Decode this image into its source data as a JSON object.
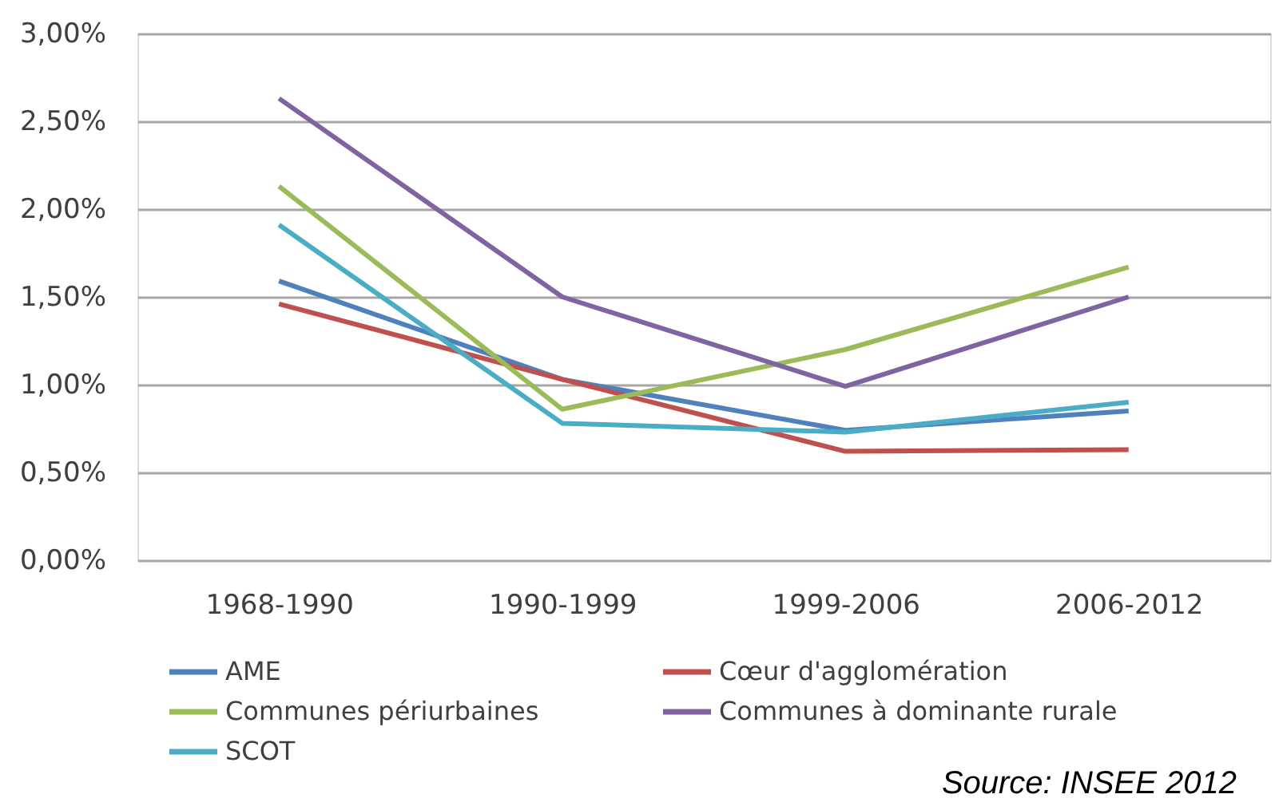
{
  "chart_data": {
    "type": "line",
    "categories": [
      "1968-1990",
      "1990-1999",
      "1999-2006",
      "2006-2012"
    ],
    "series": [
      {
        "name": "AME",
        "color": "#4f81bd",
        "values": [
          1.59,
          1.03,
          0.74,
          0.85
        ]
      },
      {
        "name": "Cœur d'agglomération",
        "color": "#c0504d",
        "values": [
          1.46,
          1.03,
          0.62,
          0.63
        ]
      },
      {
        "name": "Communes périurbaines",
        "color": "#9bbb59",
        "values": [
          2.13,
          0.86,
          1.2,
          1.67
        ]
      },
      {
        "name": "Communes à dominante rurale",
        "color": "#8064a2",
        "values": [
          2.63,
          1.5,
          0.99,
          1.5
        ]
      },
      {
        "name": "SCOT",
        "color": "#4bacc6",
        "values": [
          1.91,
          0.78,
          0.73,
          0.9
        ]
      }
    ],
    "ylim": [
      0,
      3
    ],
    "yticks": [
      {
        "value": 0,
        "label": "0,00%"
      },
      {
        "value": 0.5,
        "label": "0,50%"
      },
      {
        "value": 1,
        "label": "1,00%"
      },
      {
        "value": 1.5,
        "label": "1,50%"
      },
      {
        "value": 2,
        "label": "2,00%"
      },
      {
        "value": 2.5,
        "label": "2,50%"
      },
      {
        "value": 3,
        "label": "3,00%"
      }
    ],
    "grid": "y",
    "legend": "bottom",
    "annotations": [
      "Source: INSEE 2012"
    ]
  }
}
